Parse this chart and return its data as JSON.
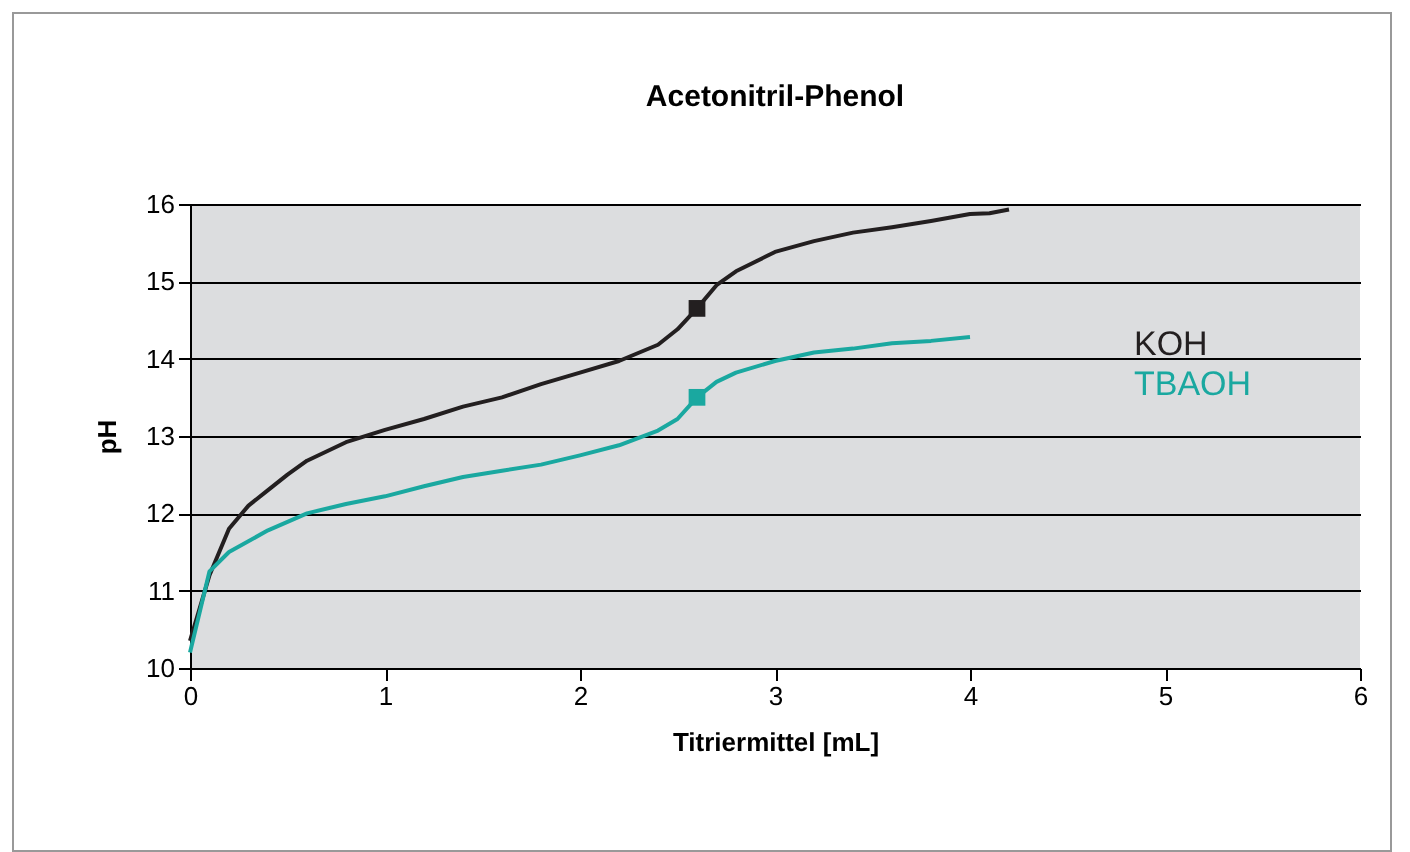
{
  "chart_data": {
    "type": "line",
    "title": "Acetonitril-Phenol",
    "xlabel": "Titriermittel [mL]",
    "ylabel": "pH",
    "xlim": [
      0,
      6
    ],
    "xticks": [
      0,
      1,
      2,
      3,
      4,
      5,
      6
    ],
    "ylim": [
      10,
      16
    ],
    "yticks": [
      10,
      11,
      12,
      13,
      14,
      15,
      16
    ],
    "grid": "y",
    "legend": "right",
    "line_style": "solid",
    "series": [
      {
        "name": "KOH",
        "color": "#231f20",
        "x": [
          0,
          0.1,
          0.2,
          0.3,
          0.4,
          0.5,
          0.6,
          0.8,
          1.0,
          1.2,
          1.4,
          1.6,
          1.8,
          2.0,
          2.2,
          2.4,
          2.5,
          2.6,
          2.7,
          2.8,
          3.0,
          3.2,
          3.4,
          3.6,
          3.8,
          4.0,
          4.1,
          4.2
        ],
        "values": [
          10.35,
          11.2,
          11.8,
          12.1,
          12.3,
          12.5,
          12.68,
          12.92,
          13.08,
          13.22,
          13.38,
          13.5,
          13.67,
          13.82,
          13.97,
          14.18,
          14.38,
          14.65,
          14.95,
          15.13,
          15.38,
          15.52,
          15.63,
          15.7,
          15.78,
          15.87,
          15.88,
          15.93
        ]
      },
      {
        "name": "TBAOH",
        "color": "#1aa8a0",
        "x": [
          0,
          0.1,
          0.2,
          0.4,
          0.6,
          0.8,
          1.0,
          1.2,
          1.4,
          1.6,
          1.8,
          2.0,
          2.2,
          2.4,
          2.5,
          2.6,
          2.7,
          2.8,
          3.0,
          3.2,
          3.4,
          3.6,
          3.8,
          4.0
        ],
        "values": [
          10.2,
          11.25,
          11.5,
          11.78,
          12.0,
          12.12,
          12.22,
          12.35,
          12.47,
          12.55,
          12.63,
          12.75,
          12.88,
          13.07,
          13.22,
          13.5,
          13.7,
          13.82,
          13.97,
          14.08,
          14.13,
          14.2,
          14.23,
          14.28
        ]
      },
      {
        "type": "scatter",
        "marker": "square",
        "color": "#231f20",
        "x": [
          2.6
        ],
        "values": [
          14.65
        ]
      },
      {
        "type": "scatter",
        "marker": "square",
        "color": "#1aa8a0",
        "x": [
          2.6
        ],
        "values": [
          13.5
        ]
      }
    ]
  }
}
